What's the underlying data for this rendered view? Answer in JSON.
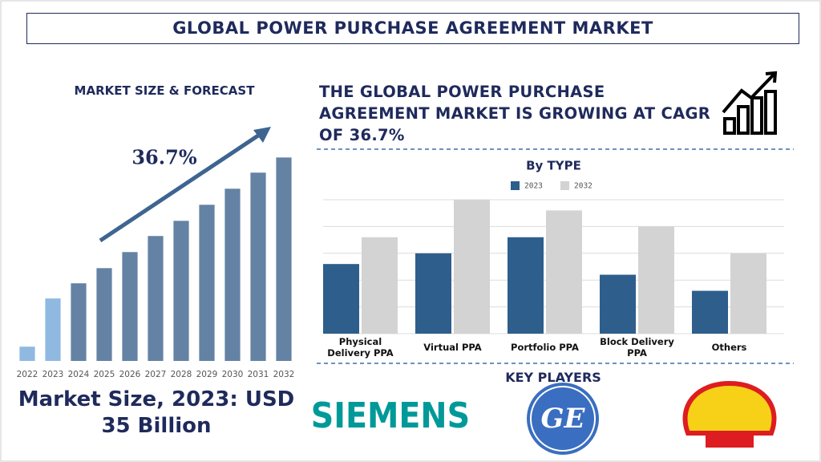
{
  "header": {
    "title": "GLOBAL POWER PURCHASE AGREEMENT MARKET"
  },
  "left_panel": {
    "heading": "MARKET SIZE & FORECAST",
    "cagr_label": "36.7%",
    "market_size": "Market Size, 2023: USD 35 Billion"
  },
  "right_panel": {
    "headline": "THE GLOBAL POWER PURCHASE AGREEMENT MARKET IS GROWING AT CAGR OF 36.7%",
    "key_players_heading": "KEY PLAYERS",
    "key_players": [
      "SIEMENS",
      "GE"
    ]
  },
  "chart_data": [
    {
      "type": "bar",
      "categories": [
        "2022",
        "2023",
        "2024",
        "2025",
        "2026",
        "2027",
        "2028",
        "2029",
        "2030",
        "2031",
        "2032"
      ],
      "values": [
        8,
        35,
        43.5,
        52,
        61,
        70,
        78.5,
        87.5,
        96.5,
        105.5,
        114
      ],
      "colors": [
        "#8fb9e0",
        "#8fb9e0",
        "#6482a4",
        "#6482a4",
        "#6482a4",
        "#6482a4",
        "#6482a4",
        "#6482a4",
        "#6482a4",
        "#6482a4",
        "#6482a4"
      ],
      "ylim": [
        0,
        120
      ]
    },
    {
      "type": "bar",
      "title": "By TYPE",
      "categories": [
        "Physical Delivery PPA",
        "Virtual PPA",
        "Portfolio PPA",
        "Block Delivery PPA",
        "Others"
      ],
      "series": [
        {
          "name": "2023",
          "color": "#2e5e8c",
          "values": [
            2.6,
            3.0,
            3.6,
            2.2,
            1.6
          ]
        },
        {
          "name": "2032",
          "color": "#d3d3d3",
          "values": [
            3.6,
            5.0,
            4.6,
            4.0,
            3.0
          ]
        }
      ],
      "ylim": [
        0,
        5
      ],
      "yticks": [
        0,
        1,
        2,
        3,
        4,
        5
      ],
      "grid": true,
      "legend": "top"
    }
  ]
}
